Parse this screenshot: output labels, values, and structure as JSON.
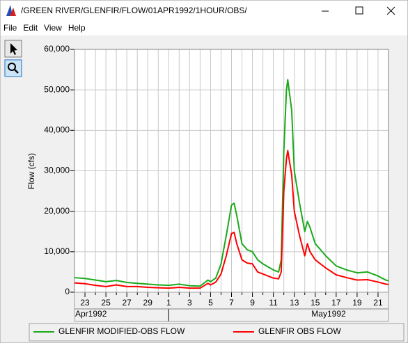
{
  "window": {
    "title": "/GREEN RIVER/GLENFIR/FLOW/01APR1992/1HOUR/OBS/",
    "menu": [
      "File",
      "Edit",
      "View",
      "Help"
    ]
  },
  "chart_data": {
    "type": "line",
    "y_label": "Flow (cfs)",
    "x": [
      "1992-04-22T00:00",
      "1992-04-23T00:00",
      "1992-04-24T00:00",
      "1992-04-25T00:00",
      "1992-04-26T00:00",
      "1992-04-27T00:00",
      "1992-04-28T00:00",
      "1992-04-29T00:00",
      "1992-04-30T00:00",
      "1992-05-01T00:00",
      "1992-05-02T00:00",
      "1992-05-03T00:00",
      "1992-05-04T00:00",
      "1992-05-04T18:00",
      "1992-05-05T00:00",
      "1992-05-05T12:00",
      "1992-05-06T00:00",
      "1992-05-06T12:00",
      "1992-05-07T00:00",
      "1992-05-07T06:00",
      "1992-05-07T12:00",
      "1992-05-08T00:00",
      "1992-05-08T12:00",
      "1992-05-09T00:00",
      "1992-05-09T12:00",
      "1992-05-10T00:00",
      "1992-05-11T00:00",
      "1992-05-11T12:00",
      "1992-05-11T18:00",
      "1992-05-12T00:00",
      "1992-05-12T06:00",
      "1992-05-12T09:00",
      "1992-05-12T18:00",
      "1992-05-13T00:00",
      "1992-05-13T12:00",
      "1992-05-14T00:00",
      "1992-05-14T06:00",
      "1992-05-14T12:00",
      "1992-05-15T00:00",
      "1992-05-16T00:00",
      "1992-05-17T00:00",
      "1992-05-18T00:00",
      "1992-05-19T00:00",
      "1992-05-20T00:00",
      "1992-05-21T00:00",
      "1992-05-21T18:00",
      "1992-05-22T00:00"
    ],
    "series": [
      {
        "name": "GLENFIR MODIFIED-OBS FLOW",
        "color": "#1aaa1a",
        "values": [
          3600,
          3400,
          3000,
          2600,
          2900,
          2400,
          2200,
          2000,
          1800,
          1700,
          2000,
          1600,
          1500,
          3000,
          2600,
          3500,
          7000,
          14000,
          21500,
          22000,
          19000,
          12000,
          10500,
          10000,
          8000,
          7000,
          5500,
          5000,
          8000,
          35000,
          50000,
          52500,
          45000,
          30000,
          22000,
          15000,
          17500,
          16000,
          12000,
          9000,
          6500,
          5500,
          4800,
          5000,
          4000,
          3000,
          2800
        ]
      },
      {
        "name": "GLENFIR OBS FLOW",
        "color": "#ff0000",
        "values": [
          2300,
          2100,
          1700,
          1400,
          1800,
          1400,
          1400,
          1200,
          1100,
          1000,
          1200,
          1000,
          1000,
          2200,
          1800,
          2500,
          4500,
          9000,
          14500,
          14800,
          12000,
          8000,
          7200,
          7000,
          5000,
          4500,
          3500,
          3300,
          5000,
          25000,
          33000,
          35000,
          29000,
          20000,
          14000,
          9000,
          12000,
          10000,
          8000,
          6000,
          4300,
          3600,
          3000,
          3100,
          2500,
          2000,
          1900
        ]
      }
    ],
    "xlim": [
      "1992-04-22T00:00",
      "1992-05-22T00:00"
    ],
    "xticks": [
      {
        "value": "1992-04-23T00:00",
        "label": "23"
      },
      {
        "value": "1992-04-25T00:00",
        "label": "25"
      },
      {
        "value": "1992-04-27T00:00",
        "label": "27"
      },
      {
        "value": "1992-04-29T00:00",
        "label": "29"
      },
      {
        "value": "1992-05-01T00:00",
        "label": "1"
      },
      {
        "value": "1992-05-03T00:00",
        "label": "3"
      },
      {
        "value": "1992-05-05T00:00",
        "label": "5"
      },
      {
        "value": "1992-05-07T00:00",
        "label": "7"
      },
      {
        "value": "1992-05-09T00:00",
        "label": "9"
      },
      {
        "value": "1992-05-11T00:00",
        "label": "11"
      },
      {
        "value": "1992-05-13T00:00",
        "label": "13"
      },
      {
        "value": "1992-05-15T00:00",
        "label": "15"
      },
      {
        "value": "1992-05-17T00:00",
        "label": "17"
      },
      {
        "value": "1992-05-19T00:00",
        "label": "19"
      },
      {
        "value": "1992-05-21T00:00",
        "label": "21"
      }
    ],
    "x_groups": [
      {
        "label": "Apr1992",
        "start": "1992-04-22T00:00"
      },
      {
        "label": "May1992",
        "start": "1992-05-01T00:00"
      }
    ],
    "ylim": [
      0,
      60000
    ],
    "yticks": [
      0,
      {
        "value": 10000,
        "label": "10,000"
      },
      {
        "value": 20000,
        "label": "20,000"
      },
      {
        "value": 30000,
        "label": "30,000"
      },
      {
        "value": 40000,
        "label": "40,000"
      },
      {
        "value": 50000,
        "label": "50,000"
      },
      {
        "value": 60000,
        "label": "60,000"
      }
    ],
    "grid": true
  }
}
